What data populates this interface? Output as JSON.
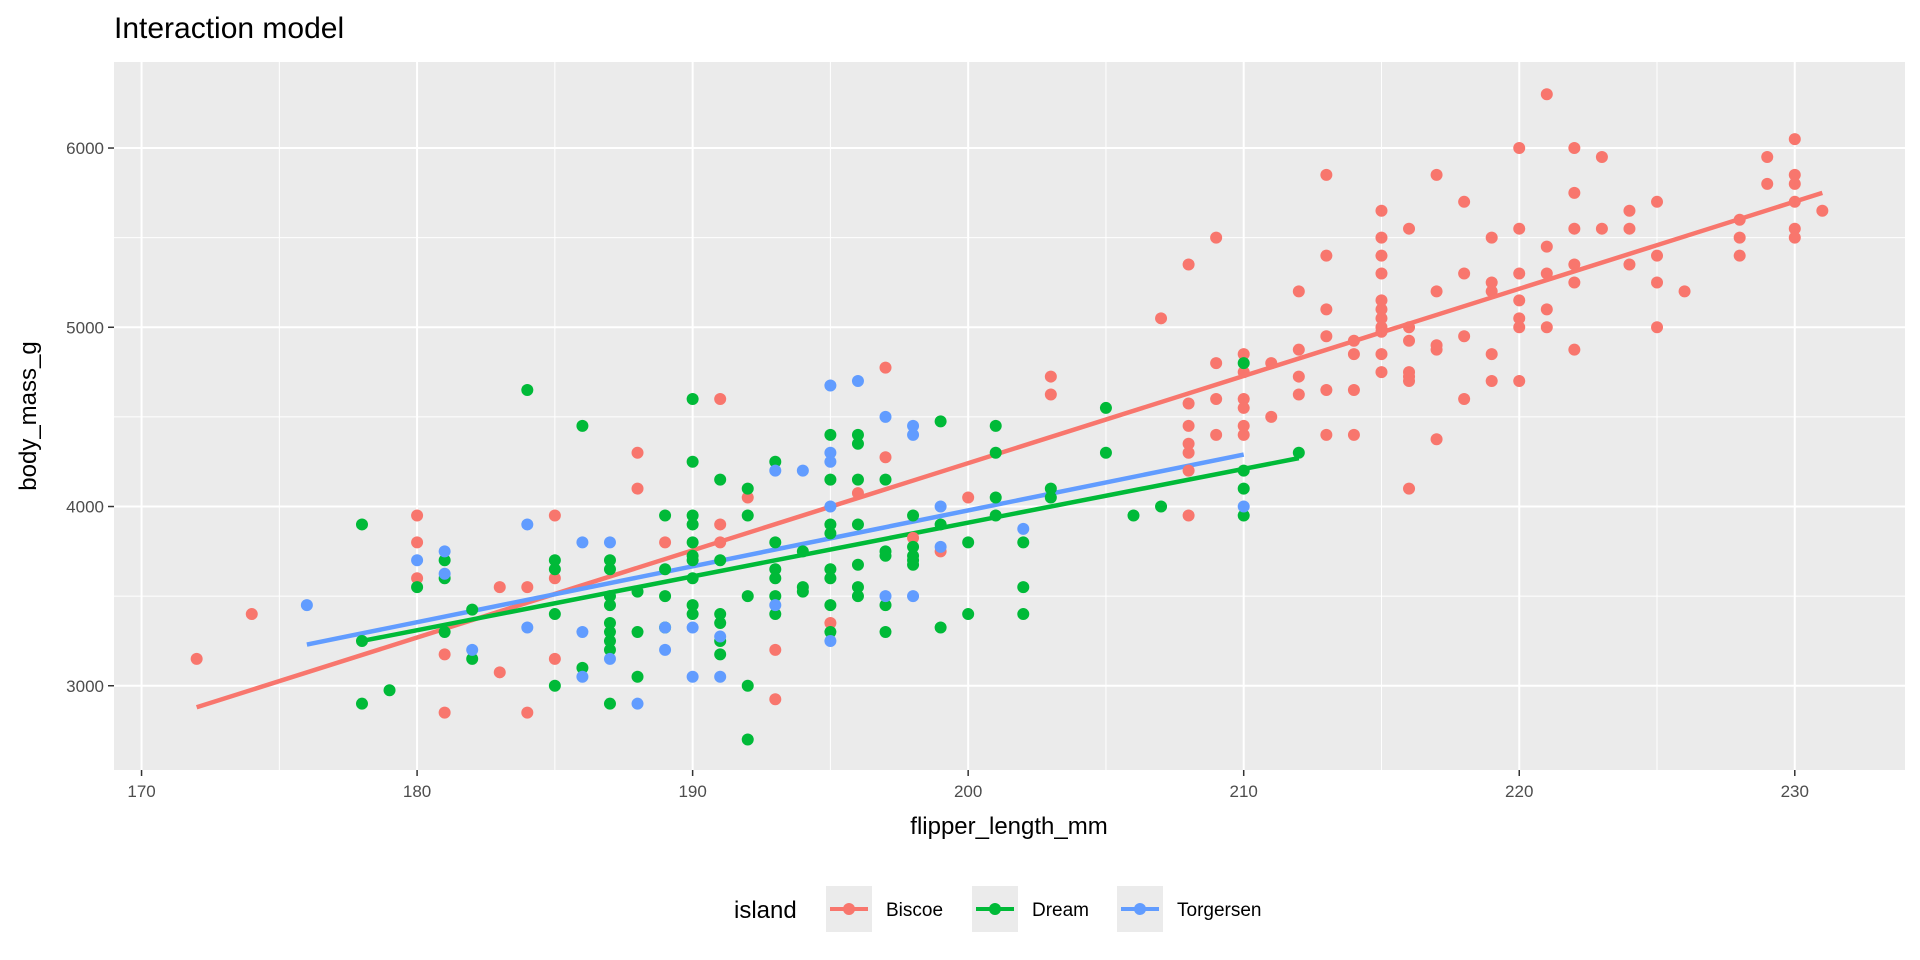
{
  "chart_data": {
    "type": "scatter",
    "title": "Interaction model",
    "xlabel": "flipper_length_mm",
    "ylabel": "body_mass_g",
    "xlim": [
      169,
      234
    ],
    "ylim": [
      2530,
      6480
    ],
    "x_ticks": [
      170,
      180,
      190,
      200,
      210,
      220,
      230
    ],
    "y_ticks": [
      3000,
      4000,
      5000,
      6000
    ],
    "grid": true,
    "legend": {
      "title": "island",
      "position": "bottom"
    },
    "series": [
      {
        "name": "Biscoe",
        "color": "#F8766D",
        "points": [
          [
            172,
            3150
          ],
          [
            174,
            3400
          ],
          [
            180,
            3950
          ],
          [
            180,
            3800
          ],
          [
            180,
            3600
          ],
          [
            181,
            3175
          ],
          [
            181,
            2850
          ],
          [
            183,
            3550
          ],
          [
            183,
            3075
          ],
          [
            184,
            3550
          ],
          [
            184,
            2850
          ],
          [
            185,
            3950
          ],
          [
            185,
            3600
          ],
          [
            185,
            3150
          ],
          [
            188,
            4300
          ],
          [
            188,
            4100
          ],
          [
            189,
            3800
          ],
          [
            191,
            4600
          ],
          [
            191,
            3900
          ],
          [
            191,
            3800
          ],
          [
            192,
            4050
          ],
          [
            193,
            3200
          ],
          [
            193,
            2925
          ],
          [
            195,
            3350
          ],
          [
            196,
            4075
          ],
          [
            197,
            4775
          ],
          [
            197,
            4275
          ],
          [
            198,
            3825
          ],
          [
            199,
            3750
          ],
          [
            200,
            4050
          ],
          [
            203,
            4725
          ],
          [
            203,
            4625
          ],
          [
            207,
            5050
          ],
          [
            208,
            5350
          ],
          [
            208,
            4575
          ],
          [
            208,
            4450
          ],
          [
            208,
            4350
          ],
          [
            208,
            4300
          ],
          [
            208,
            4200
          ],
          [
            208,
            3950
          ],
          [
            209,
            5500
          ],
          [
            209,
            4800
          ],
          [
            209,
            4600
          ],
          [
            209,
            4400
          ],
          [
            210,
            4850
          ],
          [
            210,
            4750
          ],
          [
            210,
            4600
          ],
          [
            210,
            4550
          ],
          [
            210,
            4450
          ],
          [
            210,
            4400
          ],
          [
            211,
            4800
          ],
          [
            211,
            4500
          ],
          [
            212,
            5200
          ],
          [
            212,
            4875
          ],
          [
            212,
            4725
          ],
          [
            212,
            4625
          ],
          [
            213,
            5850
          ],
          [
            213,
            5400
          ],
          [
            213,
            5100
          ],
          [
            213,
            4950
          ],
          [
            213,
            4650
          ],
          [
            213,
            4400
          ],
          [
            214,
            4925
          ],
          [
            214,
            4850
          ],
          [
            214,
            4650
          ],
          [
            214,
            4400
          ],
          [
            215,
            5650
          ],
          [
            215,
            5500
          ],
          [
            215,
            5400
          ],
          [
            215,
            5300
          ],
          [
            215,
            5150
          ],
          [
            215,
            5100
          ],
          [
            215,
            5050
          ],
          [
            215,
            5000
          ],
          [
            215,
            4975
          ],
          [
            215,
            4850
          ],
          [
            215,
            4750
          ],
          [
            216,
            5550
          ],
          [
            216,
            5000
          ],
          [
            216,
            4925
          ],
          [
            216,
            4750
          ],
          [
            216,
            4725
          ],
          [
            216,
            4700
          ],
          [
            216,
            4100
          ],
          [
            217,
            5850
          ],
          [
            217,
            5200
          ],
          [
            217,
            4900
          ],
          [
            217,
            4875
          ],
          [
            217,
            4375
          ],
          [
            218,
            5700
          ],
          [
            218,
            5300
          ],
          [
            218,
            4950
          ],
          [
            218,
            4600
          ],
          [
            219,
            5500
          ],
          [
            219,
            5250
          ],
          [
            219,
            5200
          ],
          [
            219,
            4850
          ],
          [
            219,
            4700
          ],
          [
            220,
            6000
          ],
          [
            220,
            5550
          ],
          [
            220,
            5300
          ],
          [
            220,
            5150
          ],
          [
            220,
            5050
          ],
          [
            220,
            5000
          ],
          [
            220,
            4700
          ],
          [
            221,
            6300
          ],
          [
            221,
            5450
          ],
          [
            221,
            5300
          ],
          [
            221,
            5100
          ],
          [
            221,
            5000
          ],
          [
            222,
            6000
          ],
          [
            222,
            5750
          ],
          [
            222,
            5550
          ],
          [
            222,
            5350
          ],
          [
            222,
            5250
          ],
          [
            222,
            4875
          ],
          [
            223,
            5950
          ],
          [
            223,
            5550
          ],
          [
            224,
            5650
          ],
          [
            224,
            5550
          ],
          [
            224,
            5350
          ],
          [
            225,
            5700
          ],
          [
            225,
            5400
          ],
          [
            225,
            5250
          ],
          [
            225,
            5000
          ],
          [
            226,
            5200
          ],
          [
            228,
            5600
          ],
          [
            228,
            5500
          ],
          [
            228,
            5400
          ],
          [
            229,
            5950
          ],
          [
            229,
            5800
          ],
          [
            230,
            6050
          ],
          [
            230,
            5850
          ],
          [
            230,
            5800
          ],
          [
            230,
            5700
          ],
          [
            230,
            5550
          ],
          [
            230,
            5500
          ],
          [
            231,
            5650
          ]
        ],
        "fit": [
          [
            172,
            2880
          ],
          [
            231,
            5750
          ]
        ]
      },
      {
        "name": "Dream",
        "color": "#00BA38",
        "points": [
          [
            178,
            3900
          ],
          [
            178,
            3250
          ],
          [
            178,
            2900
          ],
          [
            179,
            2975
          ],
          [
            180,
            3550
          ],
          [
            181,
            3700
          ],
          [
            181,
            3600
          ],
          [
            181,
            3300
          ],
          [
            182,
            3425
          ],
          [
            182,
            3150
          ],
          [
            184,
            4650
          ],
          [
            185,
            3700
          ],
          [
            185,
            3650
          ],
          [
            185,
            3400
          ],
          [
            185,
            3000
          ],
          [
            186,
            4450
          ],
          [
            186,
            3100
          ],
          [
            187,
            3700
          ],
          [
            187,
            3650
          ],
          [
            187,
            3500
          ],
          [
            187,
            3450
          ],
          [
            187,
            3350
          ],
          [
            187,
            3300
          ],
          [
            187,
            3250
          ],
          [
            187,
            3200
          ],
          [
            187,
            2900
          ],
          [
            188,
            3525
          ],
          [
            188,
            3300
          ],
          [
            188,
            3050
          ],
          [
            189,
            3950
          ],
          [
            189,
            3650
          ],
          [
            189,
            3500
          ],
          [
            189,
            3325
          ],
          [
            190,
            4600
          ],
          [
            190,
            4250
          ],
          [
            190,
            3950
          ],
          [
            190,
            3900
          ],
          [
            190,
            3800
          ],
          [
            190,
            3725
          ],
          [
            190,
            3700
          ],
          [
            190,
            3600
          ],
          [
            190,
            3450
          ],
          [
            190,
            3400
          ],
          [
            191,
            4150
          ],
          [
            191,
            3700
          ],
          [
            191,
            3400
          ],
          [
            191,
            3350
          ],
          [
            191,
            3250
          ],
          [
            191,
            3175
          ],
          [
            192,
            4100
          ],
          [
            192,
            3950
          ],
          [
            192,
            3500
          ],
          [
            192,
            3000
          ],
          [
            192,
            2700
          ],
          [
            193,
            4250
          ],
          [
            193,
            3800
          ],
          [
            193,
            3650
          ],
          [
            193,
            3600
          ],
          [
            193,
            3500
          ],
          [
            193,
            3400
          ],
          [
            194,
            3750
          ],
          [
            194,
            3550
          ],
          [
            194,
            3525
          ],
          [
            195,
            4400
          ],
          [
            195,
            4150
          ],
          [
            195,
            3900
          ],
          [
            195,
            3850
          ],
          [
            195,
            3650
          ],
          [
            195,
            3600
          ],
          [
            195,
            3450
          ],
          [
            195,
            3300
          ],
          [
            196,
            4400
          ],
          [
            196,
            4350
          ],
          [
            196,
            4150
          ],
          [
            196,
            3900
          ],
          [
            196,
            3675
          ],
          [
            196,
            3550
          ],
          [
            196,
            3500
          ],
          [
            197,
            4150
          ],
          [
            197,
            3750
          ],
          [
            197,
            3725
          ],
          [
            197,
            3450
          ],
          [
            197,
            3300
          ],
          [
            198,
            3950
          ],
          [
            198,
            3775
          ],
          [
            198,
            3725
          ],
          [
            198,
            3700
          ],
          [
            198,
            3675
          ],
          [
            199,
            4475
          ],
          [
            199,
            3900
          ],
          [
            199,
            3325
          ],
          [
            200,
            3800
          ],
          [
            200,
            3400
          ],
          [
            201,
            4450
          ],
          [
            201,
            4300
          ],
          [
            201,
            4050
          ],
          [
            201,
            3950
          ],
          [
            202,
            3800
          ],
          [
            202,
            3550
          ],
          [
            202,
            3400
          ],
          [
            203,
            4100
          ],
          [
            203,
            4050
          ],
          [
            205,
            4550
          ],
          [
            205,
            4300
          ],
          [
            206,
            3950
          ],
          [
            207,
            4000
          ],
          [
            210,
            4800
          ],
          [
            210,
            4200
          ],
          [
            210,
            4100
          ],
          [
            210,
            3950
          ],
          [
            212,
            4300
          ]
        ],
        "fit": [
          [
            178,
            3250
          ],
          [
            212,
            4270
          ]
        ]
      },
      {
        "name": "Torgersen",
        "color": "#619CFF",
        "points": [
          [
            176,
            3450
          ],
          [
            180,
            3700
          ],
          [
            181,
            3750
          ],
          [
            181,
            3625
          ],
          [
            182,
            3200
          ],
          [
            184,
            3900
          ],
          [
            184,
            3325
          ],
          [
            186,
            3800
          ],
          [
            186,
            3300
          ],
          [
            186,
            3050
          ],
          [
            187,
            3800
          ],
          [
            187,
            3150
          ],
          [
            188,
            2900
          ],
          [
            189,
            3325
          ],
          [
            189,
            3200
          ],
          [
            190,
            3325
          ],
          [
            190,
            3050
          ],
          [
            191,
            3275
          ],
          [
            191,
            3050
          ],
          [
            193,
            4200
          ],
          [
            193,
            3450
          ],
          [
            194,
            4200
          ],
          [
            195,
            4675
          ],
          [
            195,
            4300
          ],
          [
            195,
            4250
          ],
          [
            195,
            4000
          ],
          [
            195,
            3250
          ],
          [
            196,
            4700
          ],
          [
            197,
            4500
          ],
          [
            197,
            3500
          ],
          [
            198,
            4450
          ],
          [
            198,
            4400
          ],
          [
            198,
            3500
          ],
          [
            199,
            4000
          ],
          [
            199,
            3775
          ],
          [
            202,
            3875
          ],
          [
            210,
            4000
          ]
        ],
        "fit": [
          [
            176,
            3230
          ],
          [
            210,
            4290
          ]
        ]
      }
    ]
  }
}
